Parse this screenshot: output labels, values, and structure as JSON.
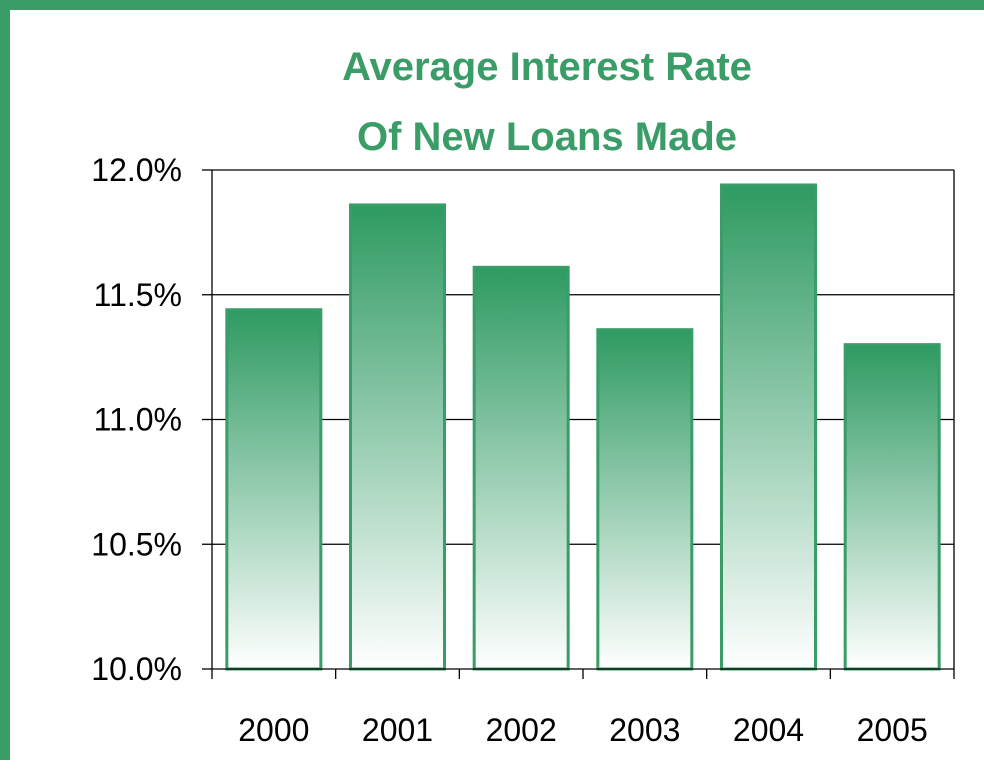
{
  "chart_data": {
    "type": "bar",
    "title": [
      "Average Interest Rate",
      "Of New Loans Made"
    ],
    "xlabel": "",
    "ylabel": "",
    "categories": [
      "2000",
      "2001",
      "2002",
      "2003",
      "2004",
      "2005"
    ],
    "values": [
      11.44,
      11.86,
      11.61,
      11.36,
      11.94,
      11.3
    ],
    "ylim": [
      10.0,
      12.0
    ],
    "yticks": [
      10.0,
      10.5,
      11.0,
      11.5,
      12.0
    ],
    "ytick_labels": [
      "10.0%",
      "10.5%",
      "11.0%",
      "11.5%",
      "12.0%"
    ],
    "grid": true,
    "legend": "none",
    "colors": {
      "bar_top": "#2e9a62",
      "bar_bottom": "#ffffff",
      "bar_stroke": "#3a9c66",
      "title": "#3a9c66",
      "frame": "#3a9c66"
    }
  }
}
